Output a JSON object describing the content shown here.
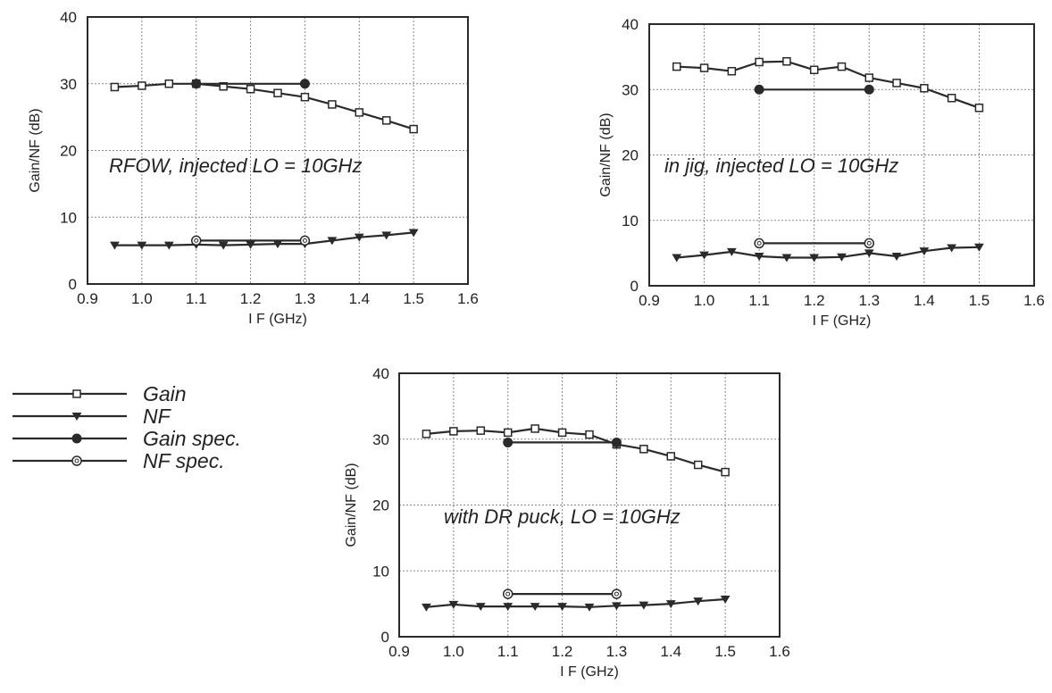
{
  "legend": [
    {
      "label": "Gain",
      "marker": "square-open"
    },
    {
      "label": "NF",
      "marker": "triangle-down"
    },
    {
      "label": "Gain  spec.",
      "marker": "circle-filled"
    },
    {
      "label": "NF  spec.",
      "marker": "circle-open"
    }
  ],
  "colors": {
    "line": "#2a2a2a",
    "grid": "#888888",
    "background": "#ffffff"
  },
  "chart_data": [
    {
      "type": "line",
      "annotation": "RFOW, injected LO = 10GHz",
      "xlabel": "I F (GHz)",
      "ylabel": "Gain/NF (dB)",
      "xlim": [
        0.9,
        1.6
      ],
      "ylim": [
        0,
        40
      ],
      "xticks": [
        "0.9",
        "1.0",
        "1.1",
        "1.2",
        "1.3",
        "1.4",
        "1.5",
        "1.6"
      ],
      "yticks": [
        "0",
        "10",
        "20",
        "30",
        "40"
      ],
      "grid": true,
      "series": [
        {
          "name": "Gain",
          "x": [
            0.95,
            1.0,
            1.05,
            1.1,
            1.15,
            1.2,
            1.25,
            1.3,
            1.35,
            1.4,
            1.45,
            1.5
          ],
          "y": [
            29.5,
            29.7,
            30.0,
            30.0,
            29.6,
            29.2,
            28.6,
            28.0,
            26.9,
            25.7,
            24.5,
            23.2
          ]
        },
        {
          "name": "NF",
          "x": [
            0.95,
            1.0,
            1.05,
            1.1,
            1.15,
            1.2,
            1.25,
            1.3,
            1.35,
            1.4,
            1.45,
            1.5
          ],
          "y": [
            5.8,
            5.8,
            5.8,
            5.9,
            5.8,
            5.9,
            6.0,
            6.0,
            6.5,
            7.0,
            7.3,
            7.7
          ]
        },
        {
          "name": "Gain  spec.",
          "x": [
            1.1,
            1.3
          ],
          "y": [
            30.0,
            30.0
          ]
        },
        {
          "name": "NF  spec.",
          "x": [
            1.1,
            1.3
          ],
          "y": [
            6.5,
            6.5
          ]
        }
      ]
    },
    {
      "type": "line",
      "annotation": "in jig, injected LO = 10GHz",
      "xlabel": "I F (GHz)",
      "ylabel": "Gain/NF (dB)",
      "xlim": [
        0.9,
        1.6
      ],
      "ylim": [
        0,
        40
      ],
      "xticks": [
        "0.9",
        "1.0",
        "1.1",
        "1.2",
        "1.3",
        "1.4",
        "1.5",
        "1.6"
      ],
      "yticks": [
        "0",
        "10",
        "20",
        "30",
        "40"
      ],
      "grid": true,
      "series": [
        {
          "name": "Gain",
          "x": [
            0.95,
            1.0,
            1.05,
            1.1,
            1.15,
            1.2,
            1.25,
            1.3,
            1.35,
            1.4,
            1.45,
            1.5
          ],
          "y": [
            33.5,
            33.3,
            32.8,
            34.2,
            34.3,
            33.0,
            33.5,
            31.8,
            31.0,
            30.2,
            28.7,
            27.2
          ]
        },
        {
          "name": "NF",
          "x": [
            0.95,
            1.0,
            1.05,
            1.1,
            1.15,
            1.2,
            1.25,
            1.3,
            1.35,
            1.4,
            1.45,
            1.5
          ],
          "y": [
            4.3,
            4.7,
            5.2,
            4.5,
            4.3,
            4.3,
            4.4,
            5.0,
            4.5,
            5.3,
            5.8,
            5.9
          ]
        },
        {
          "name": "Gain  spec.",
          "x": [
            1.1,
            1.3
          ],
          "y": [
            30.0,
            30.0
          ]
        },
        {
          "name": "NF  spec.",
          "x": [
            1.1,
            1.3
          ],
          "y": [
            6.5,
            6.5
          ]
        }
      ]
    },
    {
      "type": "line",
      "annotation": "with DR puck, LO = 10GHz",
      "xlabel": "I F (GHz)",
      "ylabel": "Gain/NF (dB)",
      "xlim": [
        0.9,
        1.6
      ],
      "ylim": [
        0,
        40
      ],
      "xticks": [
        "0.9",
        "1.0",
        "1.1",
        "1.2",
        "1.3",
        "1.4",
        "1.5",
        "1.6"
      ],
      "yticks": [
        "0",
        "10",
        "20",
        "30",
        "40"
      ],
      "grid": true,
      "series": [
        {
          "name": "Gain",
          "x": [
            0.95,
            1.0,
            1.05,
            1.1,
            1.15,
            1.2,
            1.25,
            1.3,
            1.35,
            1.4,
            1.45,
            1.5
          ],
          "y": [
            30.8,
            31.2,
            31.3,
            31.0,
            31.6,
            31.0,
            30.7,
            29.2,
            28.5,
            27.4,
            26.1,
            25.0
          ]
        },
        {
          "name": "NF",
          "x": [
            0.95,
            1.0,
            1.05,
            1.1,
            1.15,
            1.2,
            1.25,
            1.3,
            1.35,
            1.4,
            1.45,
            1.5
          ],
          "y": [
            4.5,
            4.9,
            4.6,
            4.6,
            4.6,
            4.6,
            4.5,
            4.7,
            4.8,
            5.0,
            5.4,
            5.7
          ]
        },
        {
          "name": "Gain  spec.",
          "x": [
            1.1,
            1.3
          ],
          "y": [
            29.5,
            29.5
          ]
        },
        {
          "name": "NF  spec.",
          "x": [
            1.1,
            1.3
          ],
          "y": [
            6.5,
            6.5
          ]
        }
      ]
    }
  ]
}
